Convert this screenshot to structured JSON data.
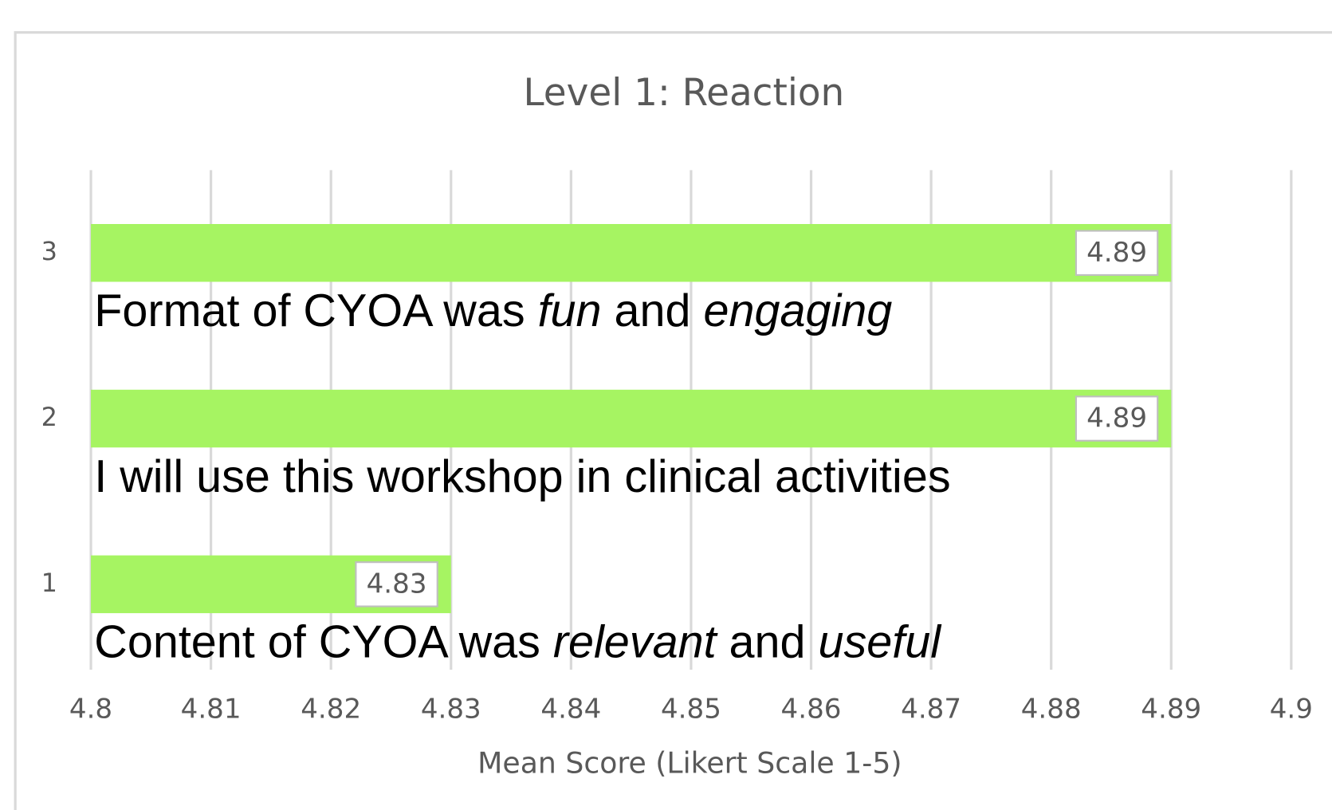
{
  "chart_data": {
    "type": "barh",
    "title": "Level 1: Reaction",
    "xlabel": "Mean Score (Likert Scale 1-5)",
    "categories": [
      "1",
      "2",
      "3"
    ],
    "values": [
      4.83,
      4.89,
      4.89
    ],
    "color": "#a6f462",
    "xlim": [
      4.8,
      4.9
    ],
    "xticks": [
      4.8,
      4.81,
      4.82,
      4.83,
      4.84,
      4.85,
      4.86,
      4.87,
      4.88,
      4.89,
      4.9
    ],
    "grid": true,
    "annotations": [
      {
        "parts": [
          "Content of CYOA was ",
          "relevant",
          " and ",
          "useful"
        ],
        "italic": [
          false,
          true,
          false,
          true
        ]
      },
      {
        "parts": [
          "I will use this workshop in clinical ",
          "activities"
        ],
        "italic": [
          false,
          false
        ]
      },
      {
        "parts": [
          "Format of CYOA was ",
          "fun",
          " and ",
          "engaging"
        ],
        "italic": [
          false,
          true,
          false,
          true
        ]
      }
    ]
  }
}
